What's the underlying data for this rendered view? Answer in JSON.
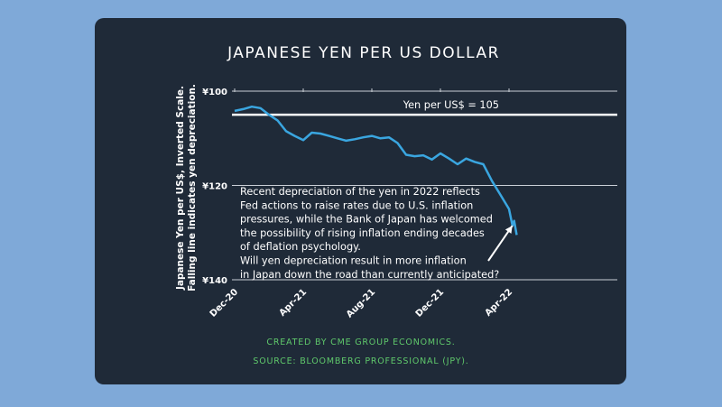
{
  "chart_data": {
    "type": "line",
    "title": "JAPANESE YEN PER US DOLLAR",
    "ylabel_lines": [
      "Japanese Yen per US$, Inverted Scale.",
      "Falling line indicates yen depreciation."
    ],
    "y_inverted": true,
    "ylim": [
      100,
      140
    ],
    "y_ticks": [
      100,
      120,
      140
    ],
    "y_tick_labels": [
      "¥100",
      "¥120",
      "¥140"
    ],
    "x_unit": "months since Dec-2020",
    "xlim": [
      0,
      18
    ],
    "x_ticks": [
      0,
      4,
      8,
      12,
      16
    ],
    "x_tick_labels": [
      "Dec-20",
      "Apr-21",
      "Aug-21",
      "Dec-21",
      "Apr-22"
    ],
    "grid": true,
    "series": [
      {
        "name": "JPY per USD",
        "color": "#3aa6e0",
        "x": [
          0,
          0.5,
          1,
          1.5,
          2,
          2.5,
          3,
          3.5,
          4,
          4.5,
          5,
          5.5,
          6,
          6.5,
          7,
          7.5,
          8,
          8.5,
          9,
          9.5,
          10,
          10.5,
          11,
          11.5,
          12,
          12.5,
          13,
          13.5,
          14,
          14.5,
          15,
          15.5,
          16,
          16.2,
          16.3,
          16.45
        ],
        "values": [
          104.2,
          103.8,
          103.3,
          103.6,
          105.0,
          106.2,
          108.5,
          109.5,
          110.4,
          108.8,
          109.0,
          109.5,
          110.0,
          110.5,
          110.2,
          109.8,
          109.5,
          110.0,
          109.8,
          111.0,
          113.5,
          113.8,
          113.6,
          114.5,
          113.2,
          114.3,
          115.5,
          114.3,
          115.0,
          115.5,
          119.0,
          122.0,
          125.0,
          128.5,
          127.5,
          130.5
        ]
      }
    ],
    "reference_line": {
      "value": 105,
      "label": "Yen per US$ = 105",
      "color": "#ffffff"
    },
    "annotation": {
      "lines": [
        "Recent depreciation of the yen in 2022 reflects",
        "Fed actions to raise rates due to U.S. inflation",
        "pressures, while the Bank of Japan has welcomed",
        "the possibility of rising inflation ending decades",
        "of deflation psychology.",
        "Will yen depreciation result in more inflation",
        "in Japan down the road than currently anticipated?"
      ],
      "arrow_target": {
        "x": 16.3,
        "y": 127
      }
    },
    "footer": [
      "CREATED BY CME GROUP ECONOMICS.",
      "SOURCE: BLOOMBERG PROFESSIONAL (JPY)."
    ]
  },
  "colors": {
    "background": "#7fa9d8",
    "card": "#1f2a38",
    "footer_text": "#5fc86b"
  }
}
